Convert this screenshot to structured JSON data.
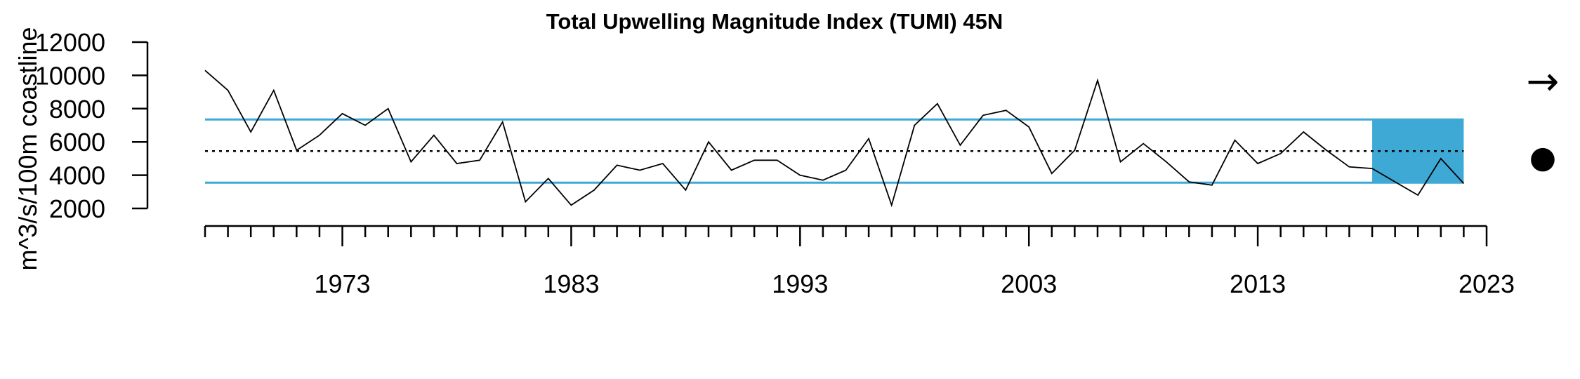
{
  "chart_data": {
    "type": "line",
    "title": "Total Upwelling Magnitude Index (TUMI) 45N",
    "xlabel": "",
    "ylabel": "m^3/s/100m coastline",
    "x_tick_labels": [
      "1973",
      "1983",
      "1993",
      "2003",
      "2013",
      "2023"
    ],
    "x_tick_values": [
      1973,
      1983,
      1993,
      2003,
      2013,
      2023
    ],
    "y_tick_labels": [
      "2000",
      "4000",
      "6000",
      "8000",
      "10000",
      "12000"
    ],
    "y_tick_values": [
      2000,
      4000,
      6000,
      8000,
      10000,
      12000
    ],
    "xlim": [
      1967,
      2023
    ],
    "ylim": [
      2000,
      12000
    ],
    "minor_tick_step_years": 1,
    "series": [
      {
        "x": [
          1967,
          1968,
          1969,
          1970,
          1971,
          1972,
          1973,
          1974,
          1975,
          1976,
          1977,
          1978,
          1979,
          1980,
          1981,
          1982,
          1983,
          1984,
          1985,
          1986,
          1987,
          1988,
          1989,
          1990,
          1991,
          1992,
          1993,
          1994,
          1995,
          1996,
          1997,
          1998,
          1999,
          2000,
          2001,
          2002,
          2003,
          2004,
          2005,
          2006,
          2007,
          2008,
          2009,
          2010,
          2011,
          2012,
          2013,
          2014,
          2015,
          2016,
          2017,
          2018,
          2019,
          2020,
          2021,
          2022
        ],
        "y": [
          10300,
          9100,
          6600,
          9100,
          5500,
          6400,
          7700,
          7000,
          8000,
          4800,
          6400,
          4700,
          4900,
          7200,
          2400,
          3800,
          2200,
          3100,
          4600,
          4300,
          4700,
          3100,
          6000,
          4300,
          4900,
          4900,
          4000,
          3700,
          4300,
          6200,
          2200,
          7000,
          8300,
          5800,
          7600,
          7900,
          6900,
          4100,
          5500,
          9700,
          4800,
          5900,
          4800,
          3600,
          3400,
          6100,
          4700,
          5300,
          6600,
          5500,
          4500,
          4400,
          3600,
          2800,
          5000,
          3500
        ]
      }
    ],
    "reference_lines": {
      "mean": 5450,
      "upper_sd": 7350,
      "lower_sd": 3550,
      "mean_style": "dotted",
      "sd_color": "#3FA9D5"
    },
    "highlight_region": {
      "x_start": 2018,
      "x_end": 2022,
      "y_start": 3550,
      "y_end": 7350,
      "color": "#3FA9D5"
    },
    "trend_symbol": "→",
    "status_symbol": "●"
  }
}
